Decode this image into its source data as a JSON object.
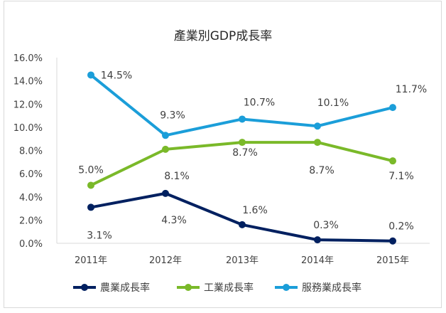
{
  "chart_data": {
    "type": "line",
    "title": "產業別GDP成長率",
    "categories": [
      "2011年",
      "2012年",
      "2013年",
      "2014年",
      "2015年"
    ],
    "ylim": [
      0,
      16
    ],
    "yticks": [
      "0.0%",
      "2.0%",
      "4.0%",
      "6.0%",
      "8.0%",
      "10.0%",
      "12.0%",
      "14.0%",
      "16.0%"
    ],
    "grid": false,
    "legend_position": "bottom",
    "series": [
      {
        "name": "農業成長率",
        "color": "#002060",
        "values": [
          3.1,
          4.3,
          1.6,
          0.3,
          0.2
        ],
        "labels": [
          "3.1%",
          "4.3%",
          "1.6%",
          "0.3%",
          "0.2%"
        ]
      },
      {
        "name": "工業成長率",
        "color": "#7AB929",
        "values": [
          5.0,
          8.1,
          8.7,
          8.7,
          7.1
        ],
        "labels": [
          "5.0%",
          "8.1%",
          "8.7%",
          "8.7%",
          "7.1%"
        ]
      },
      {
        "name": "服務業成長率",
        "color": "#1B9ED9",
        "values": [
          14.5,
          9.3,
          10.7,
          10.1,
          11.7
        ],
        "labels": [
          "14.5%",
          "9.3%",
          "10.7%",
          "10.1%",
          "11.7%"
        ]
      }
    ]
  }
}
